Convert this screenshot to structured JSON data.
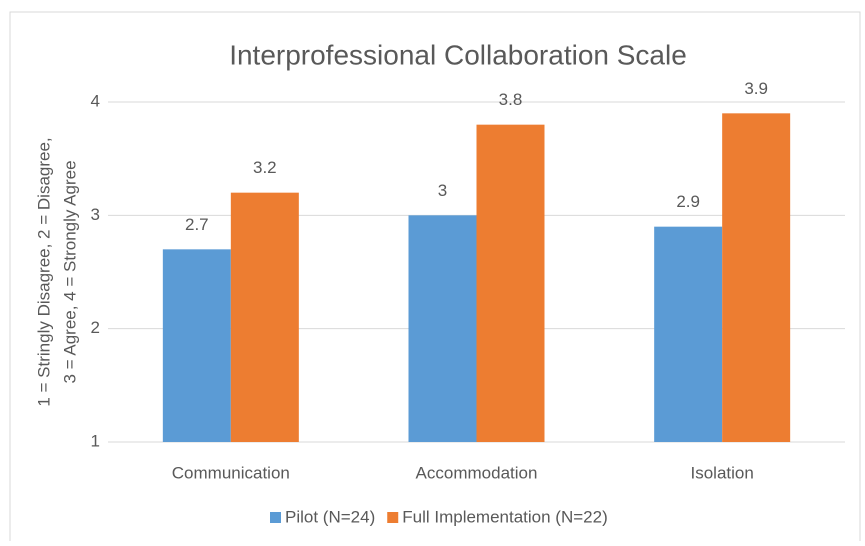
{
  "chart_data": {
    "type": "bar",
    "title": "Interprofessional Collaboration Scale",
    "ylabel": [
      "1 =  Stringly Disagree,   2 =  Disagree,",
      "3 = Agree,  4 = Strongly Agree"
    ],
    "categories": [
      "Communication",
      "Accommodation",
      "Isolation"
    ],
    "series": [
      {
        "name": "Pilot (N=24)",
        "color": "#5b9bd5",
        "values": [
          2.7,
          3,
          2.9
        ]
      },
      {
        "name": "Full Implementation (N=22)",
        "color": "#ed7d31",
        "values": [
          3.2,
          3.8,
          3.9
        ]
      }
    ],
    "ylim": [
      1,
      4
    ],
    "yticks": [
      1,
      2,
      3,
      4
    ],
    "grid": true,
    "legend": "bottom"
  }
}
